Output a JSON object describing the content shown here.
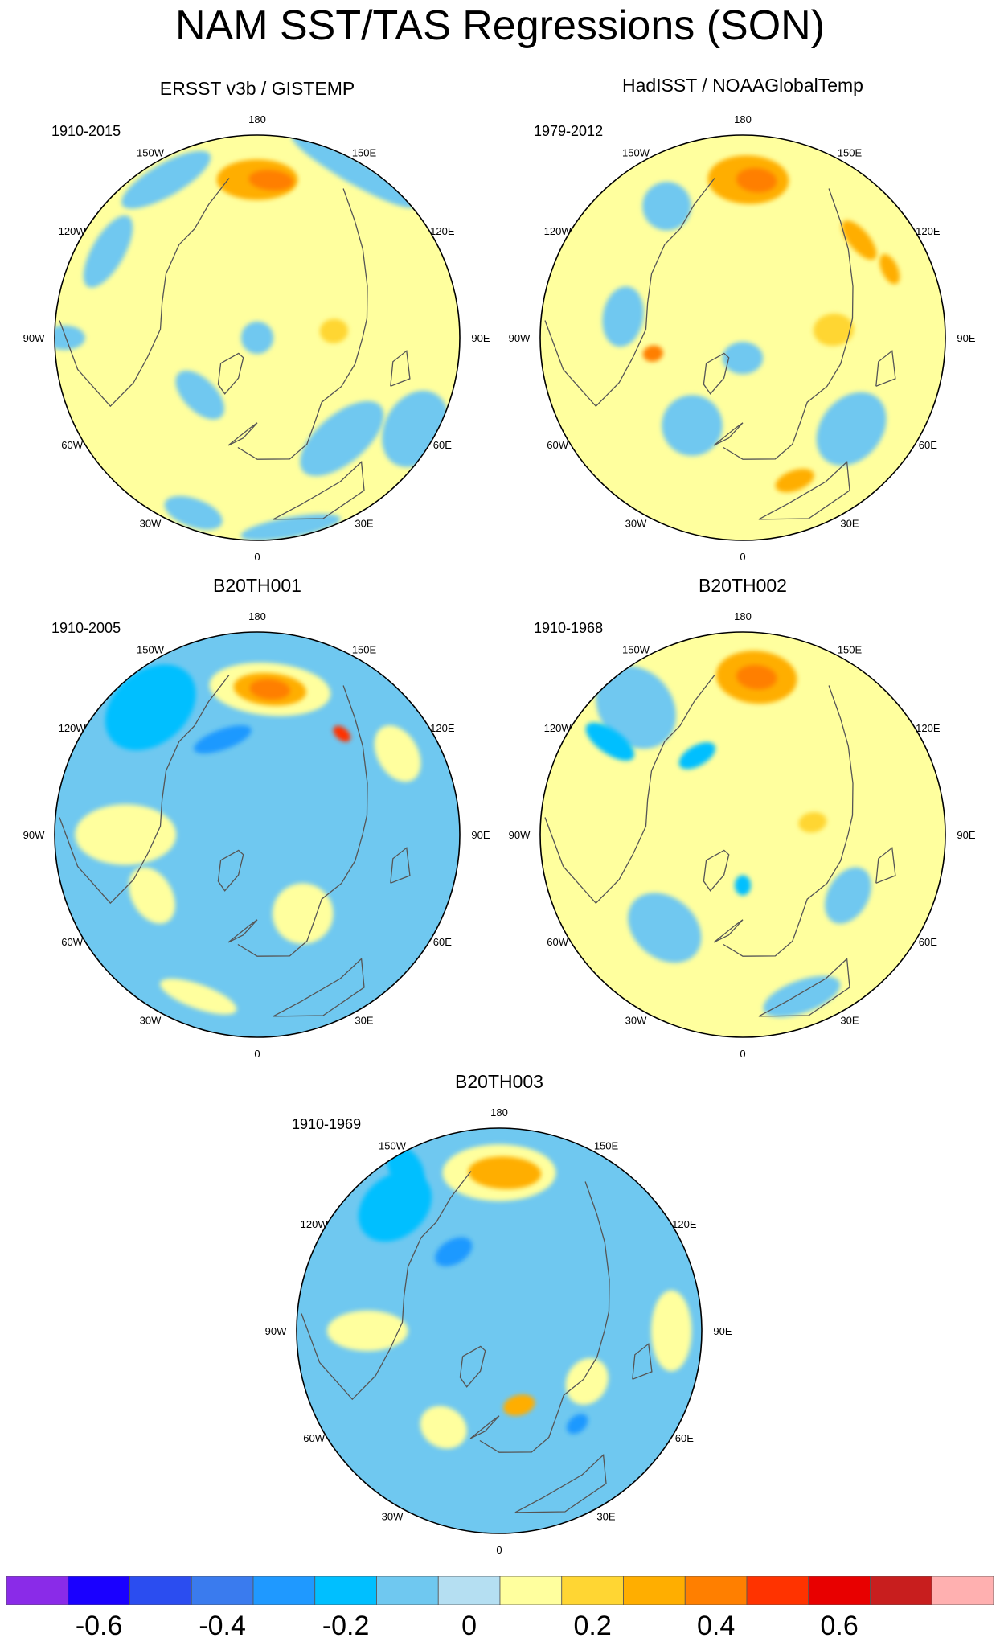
{
  "title": "NAM SST/TAS Regressions (SON)",
  "palette": {
    "levels": [
      -0.75,
      -0.65,
      -0.55,
      -0.45,
      -0.35,
      -0.25,
      -0.15,
      -0.05,
      0.05,
      0.15,
      0.25,
      0.35,
      0.45,
      0.55,
      0.65,
      0.75
    ],
    "colors": [
      "#8a2be8",
      "#1a00ff",
      "#2b4df0",
      "#3a7bee",
      "#1f99ff",
      "#00bfff",
      "#6fc8f0",
      "#b5dff2",
      "#ffff9e",
      "#ffd633",
      "#ffae00",
      "#ff7f00",
      "#ff3300",
      "#e80000",
      "#c81e1e",
      "#ffb0b0"
    ],
    "land_outline": "#555555",
    "missing": "#ffffff"
  },
  "colorbar": {
    "tick_labels": [
      "-0.6",
      "-0.4",
      "-0.2",
      "0",
      "0.2",
      "0.4",
      "0.6"
    ],
    "tick_values": [
      -0.6,
      -0.4,
      -0.2,
      0,
      0.2,
      0.4,
      0.6
    ]
  },
  "longitude_labels": [
    "180",
    "150E",
    "120E",
    "90E",
    "60E",
    "30E",
    "0",
    "30W",
    "60W",
    "90W",
    "120W",
    "150W"
  ],
  "panels": [
    {
      "id": "ersst",
      "title": "ERSST v3b / GISTEMP",
      "years": "1910-2015",
      "background": 0.1,
      "blobs": [
        {
          "lon": 180,
          "r": 0.78,
          "rx": 0.2,
          "ry": 0.1,
          "value": 0.3
        },
        {
          "lon": 175,
          "r": 0.78,
          "rx": 0.11,
          "ry": 0.05,
          "value": 0.4
        },
        {
          "lon": 150,
          "r": 0.95,
          "rx": 0.35,
          "ry": 0.06,
          "value": -0.1
        },
        {
          "lon": -150,
          "r": 0.9,
          "rx": 0.25,
          "ry": 0.08,
          "value": -0.1
        },
        {
          "lon": -120,
          "r": 0.85,
          "rx": 0.2,
          "ry": 0.08,
          "value": -0.1
        },
        {
          "lon": -90,
          "r": 0.95,
          "rx": 0.06,
          "ry": 0.1,
          "value": -0.1
        },
        {
          "lon": -45,
          "r": 0.4,
          "rx": 0.15,
          "ry": 0.08,
          "value": -0.1
        },
        {
          "lon": 40,
          "r": 0.65,
          "rx": 0.25,
          "ry": 0.12,
          "value": -0.1
        },
        {
          "lon": 60,
          "r": 0.9,
          "rx": 0.2,
          "ry": 0.15,
          "value": -0.1
        },
        {
          "lon": -20,
          "r": 0.92,
          "rx": 0.15,
          "ry": 0.07,
          "value": -0.1
        },
        {
          "lon": 10,
          "r": 0.95,
          "rx": 0.25,
          "ry": 0.05,
          "value": -0.1
        },
        {
          "lon": 95,
          "r": 0.38,
          "rx": 0.06,
          "ry": 0.07,
          "value": 0.2
        },
        {
          "lon": 0,
          "r": 0.0,
          "rx": 0.08,
          "ry": 0.08,
          "value": -0.1
        }
      ]
    },
    {
      "id": "hadisst",
      "title": "HadISST / NOAAGlobalTemp",
      "years": "1979-2012",
      "background": 0.1,
      "blobs": [
        {
          "lon": 178,
          "r": 0.78,
          "rx": 0.2,
          "ry": 0.12,
          "value": 0.3
        },
        {
          "lon": 175,
          "r": 0.78,
          "rx": 0.1,
          "ry": 0.06,
          "value": 0.4
        },
        {
          "lon": 130,
          "r": 0.75,
          "rx": 0.12,
          "ry": 0.05,
          "value": 0.3
        },
        {
          "lon": 115,
          "r": 0.8,
          "rx": 0.08,
          "ry": 0.04,
          "value": 0.3
        },
        {
          "lon": 95,
          "r": 0.45,
          "rx": 0.08,
          "ry": 0.1,
          "value": 0.2
        },
        {
          "lon": -150,
          "r": 0.75,
          "rx": 0.12,
          "ry": 0.12,
          "value": -0.1
        },
        {
          "lon": -100,
          "r": 0.6,
          "rx": 0.15,
          "ry": 0.1,
          "value": -0.1
        },
        {
          "lon": -30,
          "r": 0.5,
          "rx": 0.15,
          "ry": 0.15,
          "value": -0.1
        },
        {
          "lon": 50,
          "r": 0.7,
          "rx": 0.2,
          "ry": 0.15,
          "value": -0.1
        },
        {
          "lon": 20,
          "r": 0.75,
          "rx": 0.1,
          "ry": 0.05,
          "value": 0.3
        },
        {
          "lon": -80,
          "r": 0.45,
          "rx": 0.04,
          "ry": 0.05,
          "value": 0.4
        },
        {
          "lon": 0,
          "r": 0.1,
          "rx": 0.1,
          "ry": 0.08,
          "value": -0.1
        }
      ]
    },
    {
      "id": "b20th001",
      "title": "B20TH001",
      "years": "1910-2005",
      "background": -0.1,
      "blobs": [
        {
          "lon": 175,
          "r": 0.72,
          "rx": 0.3,
          "ry": 0.13,
          "value": 0.1
        },
        {
          "lon": 175,
          "r": 0.72,
          "rx": 0.18,
          "ry": 0.08,
          "value": 0.3
        },
        {
          "lon": 175,
          "r": 0.72,
          "rx": 0.1,
          "ry": 0.05,
          "value": 0.4
        },
        {
          "lon": 140,
          "r": 0.65,
          "rx": 0.05,
          "ry": 0.03,
          "value": 0.5
        },
        {
          "lon": -140,
          "r": 0.82,
          "rx": 0.25,
          "ry": 0.18,
          "value": -0.2
        },
        {
          "lon": -160,
          "r": 0.5,
          "rx": 0.15,
          "ry": 0.05,
          "value": -0.3
        },
        {
          "lon": -90,
          "r": 0.65,
          "rx": 0.15,
          "ry": 0.25,
          "value": 0.1
        },
        {
          "lon": -60,
          "r": 0.6,
          "rx": 0.15,
          "ry": 0.1,
          "value": 0.1
        },
        {
          "lon": 30,
          "r": 0.45,
          "rx": 0.15,
          "ry": 0.15,
          "value": 0.1
        },
        {
          "lon": 120,
          "r": 0.8,
          "rx": 0.15,
          "ry": 0.1,
          "value": 0.1
        },
        {
          "lon": -20,
          "r": 0.85,
          "rx": 0.2,
          "ry": 0.06,
          "value": 0.1
        }
      ]
    },
    {
      "id": "b20th002",
      "title": "B20TH002",
      "years": "1910-1968",
      "background": 0.1,
      "blobs": [
        {
          "lon": 175,
          "r": 0.78,
          "rx": 0.2,
          "ry": 0.13,
          "value": 0.3
        },
        {
          "lon": 175,
          "r": 0.78,
          "rx": 0.1,
          "ry": 0.06,
          "value": 0.4
        },
        {
          "lon": -140,
          "r": 0.82,
          "rx": 0.18,
          "ry": 0.22,
          "value": -0.1
        },
        {
          "lon": -125,
          "r": 0.8,
          "rx": 0.06,
          "ry": 0.14,
          "value": -0.2
        },
        {
          "lon": -150,
          "r": 0.45,
          "rx": 0.1,
          "ry": 0.05,
          "value": -0.2
        },
        {
          "lon": -40,
          "r": 0.6,
          "rx": 0.2,
          "ry": 0.15,
          "value": -0.1
        },
        {
          "lon": 20,
          "r": 0.85,
          "rx": 0.2,
          "ry": 0.08,
          "value": -0.1
        },
        {
          "lon": 60,
          "r": 0.6,
          "rx": 0.15,
          "ry": 0.1,
          "value": -0.1
        },
        {
          "lon": 100,
          "r": 0.35,
          "rx": 0.05,
          "ry": 0.07,
          "value": 0.2
        },
        {
          "lon": 0,
          "r": 0.25,
          "rx": 0.04,
          "ry": 0.05,
          "value": -0.2
        }
      ]
    },
    {
      "id": "b20th003",
      "title": "B20TH003",
      "years": "1910-1969",
      "background": -0.1,
      "blobs": [
        {
          "lon": 180,
          "r": 0.78,
          "rx": 0.28,
          "ry": 0.14,
          "value": 0.1
        },
        {
          "lon": 178,
          "r": 0.78,
          "rx": 0.18,
          "ry": 0.08,
          "value": 0.3
        },
        {
          "lon": -140,
          "r": 0.8,
          "rx": 0.2,
          "ry": 0.15,
          "value": -0.2
        },
        {
          "lon": -150,
          "r": 0.45,
          "rx": 0.1,
          "ry": 0.06,
          "value": -0.3
        },
        {
          "lon": -150,
          "r": 0.92,
          "rx": 0.08,
          "ry": 0.12,
          "value": -0.2
        },
        {
          "lon": -90,
          "r": 0.65,
          "rx": 0.1,
          "ry": 0.2,
          "value": 0.1
        },
        {
          "lon": 60,
          "r": 0.5,
          "rx": 0.12,
          "ry": 0.1,
          "value": 0.1
        },
        {
          "lon": -30,
          "r": 0.55,
          "rx": 0.12,
          "ry": 0.1,
          "value": 0.1
        },
        {
          "lon": 15,
          "r": 0.38,
          "rx": 0.08,
          "ry": 0.05,
          "value": 0.3
        },
        {
          "lon": 90,
          "r": 0.85,
          "rx": 0.2,
          "ry": 0.1,
          "value": 0.1
        },
        {
          "lon": 40,
          "r": 0.6,
          "rx": 0.06,
          "ry": 0.04,
          "value": -0.3
        }
      ]
    }
  ]
}
